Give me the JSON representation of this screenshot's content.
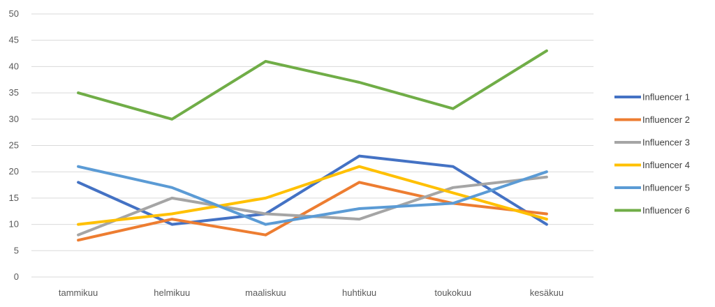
{
  "chart_data": {
    "type": "line",
    "title": "",
    "xlabel": "",
    "ylabel": "",
    "categories": [
      "tammikuu",
      "helmikuu",
      "maaliskuu",
      "huhtikuu",
      "toukokuu",
      "kesäkuu"
    ],
    "ylim": [
      0,
      50
    ],
    "yticks": [
      0,
      5,
      10,
      15,
      20,
      25,
      30,
      35,
      40,
      45,
      50
    ],
    "grid": true,
    "legend_position": "right",
    "series": [
      {
        "name": "Influencer 1",
        "color": "#4472C4",
        "values": [
          18,
          10,
          12,
          23,
          21,
          10
        ]
      },
      {
        "name": "Influencer 2",
        "color": "#ED7D31",
        "values": [
          7,
          11,
          8,
          18,
          14,
          12
        ]
      },
      {
        "name": "Influencer 3",
        "color": "#A5A5A5",
        "values": [
          8,
          15,
          12,
          11,
          17,
          19
        ]
      },
      {
        "name": "Influencer 4",
        "color": "#FFC000",
        "values": [
          10,
          12,
          15,
          21,
          16,
          11
        ]
      },
      {
        "name": "Influencer 5",
        "color": "#5B9BD5",
        "values": [
          21,
          17,
          10,
          13,
          14,
          20
        ]
      },
      {
        "name": "Influencer 6",
        "color": "#70AD47",
        "values": [
          35,
          30,
          41,
          37,
          32,
          43
        ]
      }
    ]
  }
}
